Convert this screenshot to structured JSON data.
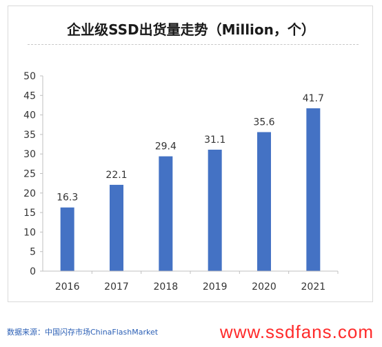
{
  "title": "企业级SSD出货量走势（Million，个）",
  "source": "数据来源：中国闪存市场ChinaFlashMarket",
  "watermark": "www.ssdfans.com",
  "colors": {
    "bar": "#4472c4",
    "axis": "#bfbfbf",
    "text": "#333333",
    "watermark": "#ff2a2a"
  },
  "chart_data": {
    "type": "bar",
    "title": "企业级SSD出货量走势（Million，个）",
    "categories": [
      "2016",
      "2017",
      "2018",
      "2019",
      "2020",
      "2021"
    ],
    "values": [
      16.3,
      22.1,
      29.4,
      31.1,
      35.6,
      41.7
    ],
    "data_labels": [
      "16.3",
      "22.1",
      "29.4",
      "31.1",
      "35.6",
      "41.7"
    ],
    "ylim": [
      0,
      50
    ],
    "yticks": [
      0,
      5,
      10,
      15,
      20,
      25,
      30,
      35,
      40,
      45,
      50
    ],
    "grid": false,
    "legend": "none",
    "xlabel": "",
    "ylabel": ""
  }
}
